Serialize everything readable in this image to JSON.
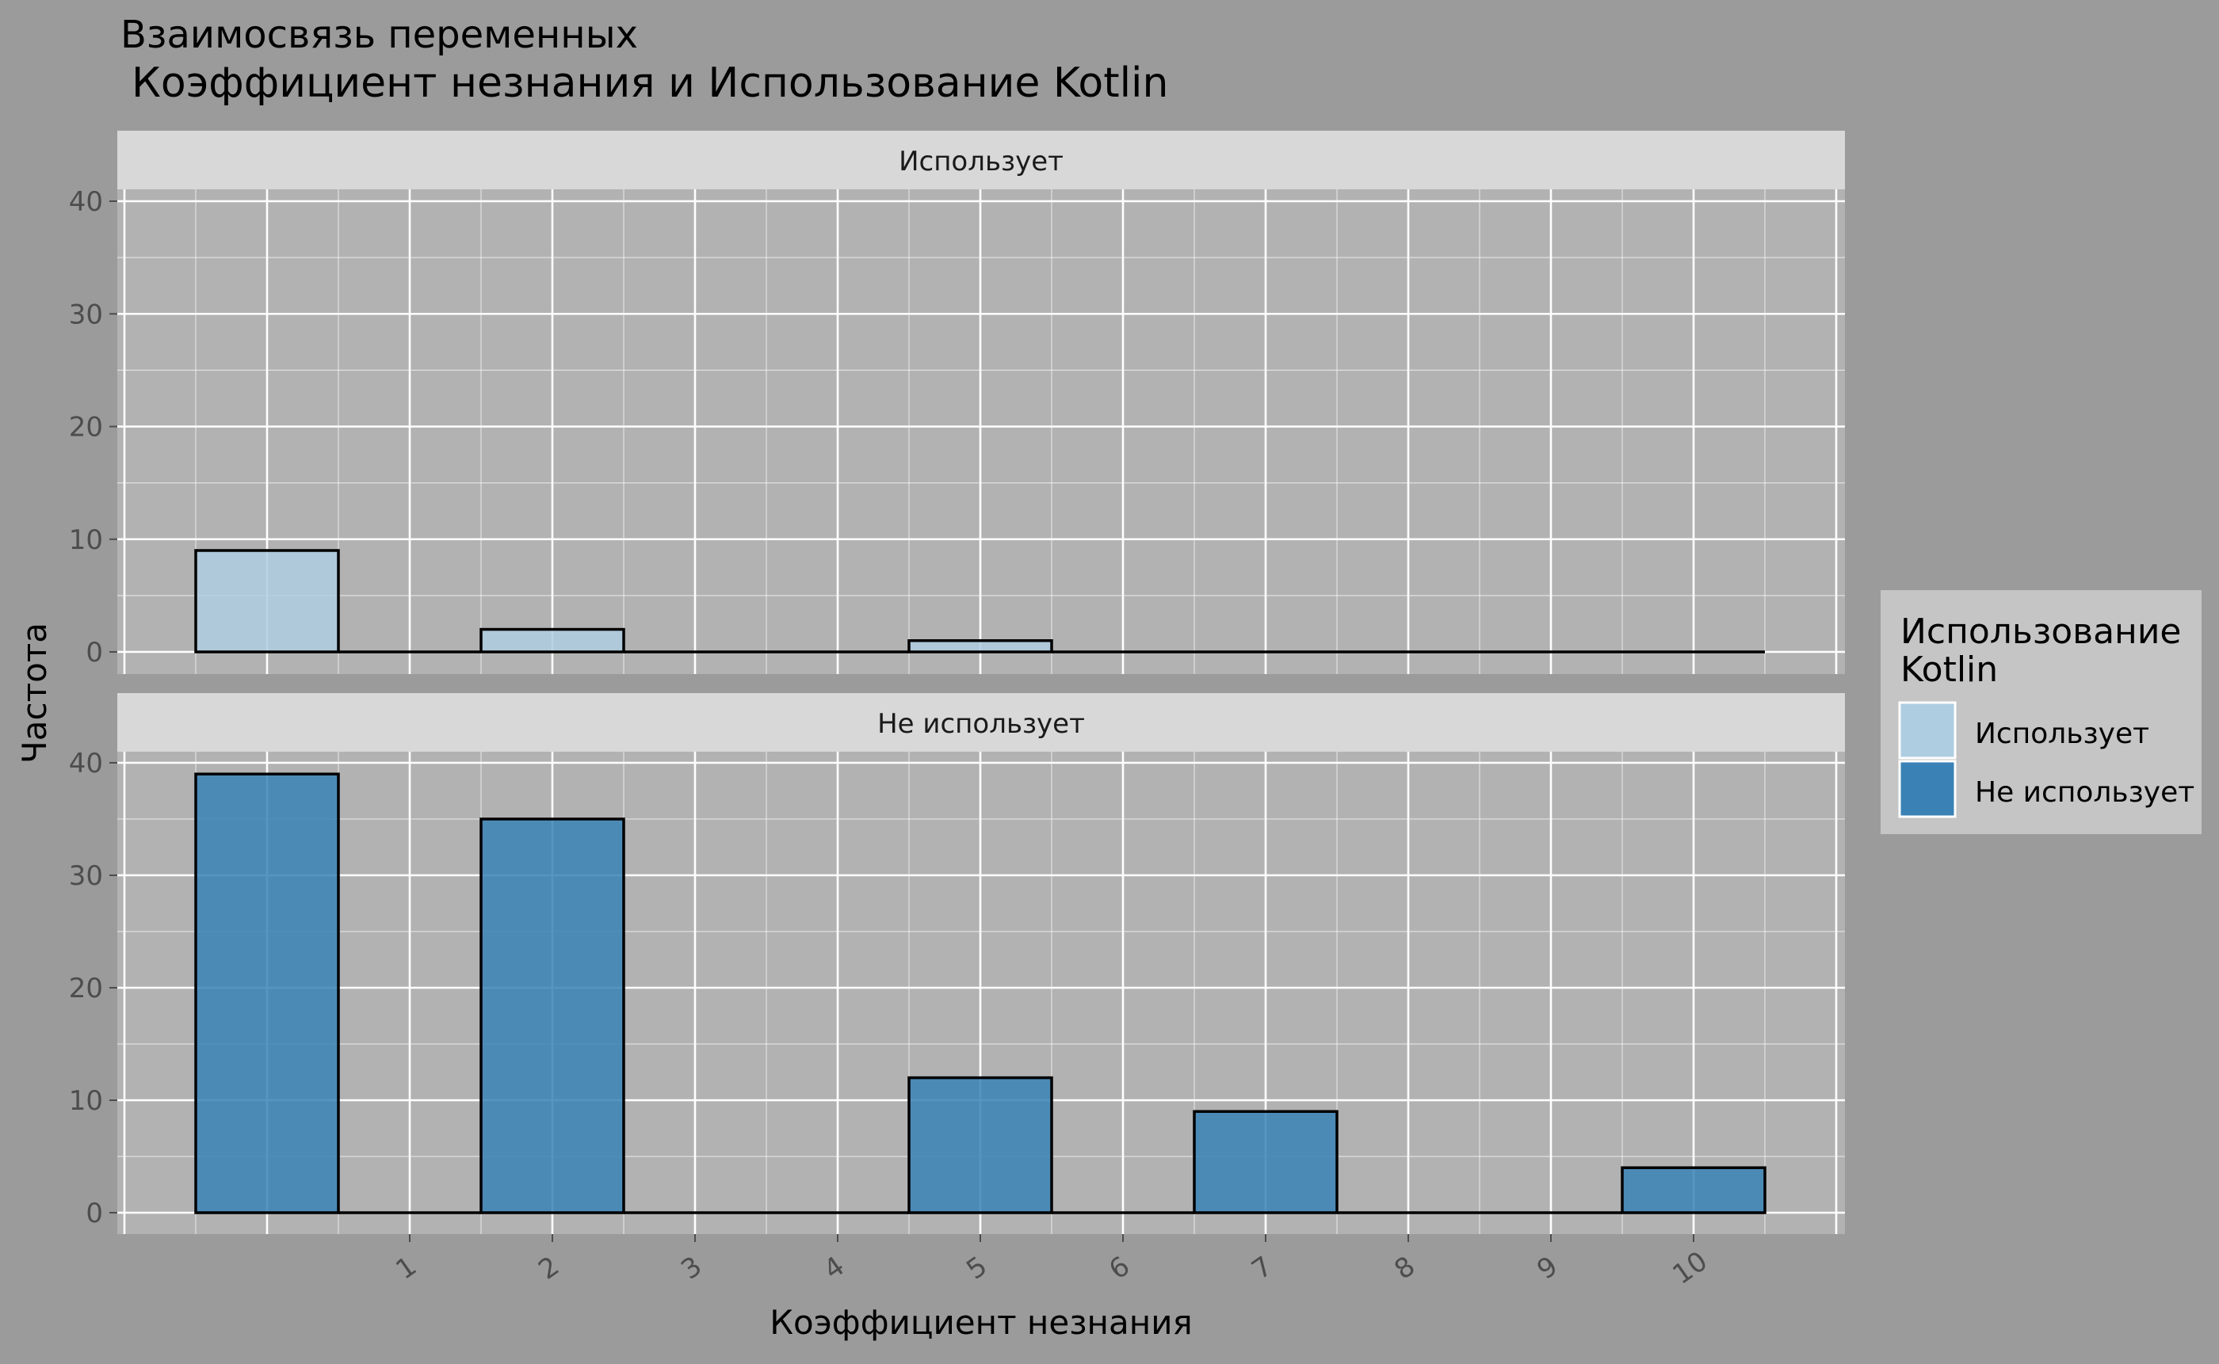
{
  "title_line1": "Взаимосвязь переменных",
  "title_line2": "Коэффициент незнания и Использование Kotlin",
  "chart_data": {
    "type": "bar",
    "facet_by": "Использование Kotlin",
    "x_bin_centers": [
      0,
      2,
      5,
      7,
      10
    ],
    "x_tick_labels": [
      "1",
      "2",
      "3",
      "4",
      "5",
      "6",
      "7",
      "8",
      "9",
      "10"
    ],
    "x_tick_values": [
      1,
      2,
      3,
      4,
      5,
      6,
      7,
      8,
      9,
      10
    ],
    "xlabel": "Коэффициент незнания",
    "ylabel": "Частота",
    "ylim": [
      0,
      40
    ],
    "y_ticks": [
      0,
      10,
      20,
      30,
      40
    ],
    "grid": true,
    "legend_position": "right",
    "legend_title": "Использование Kotlin",
    "series": [
      {
        "name": "Использует",
        "color": "#aecde1",
        "values": [
          9,
          2,
          1,
          0,
          0
        ]
      },
      {
        "name": "Не использует",
        "color": "#3a82b6",
        "values": [
          39,
          35,
          12,
          9,
          4
        ]
      }
    ]
  },
  "colors": {
    "background": "#9b9b9b",
    "panel": "#b2b2b2",
    "strip": "#d8d8d8",
    "grid": "#ffffff",
    "legend_box": "#c5c5c5"
  }
}
